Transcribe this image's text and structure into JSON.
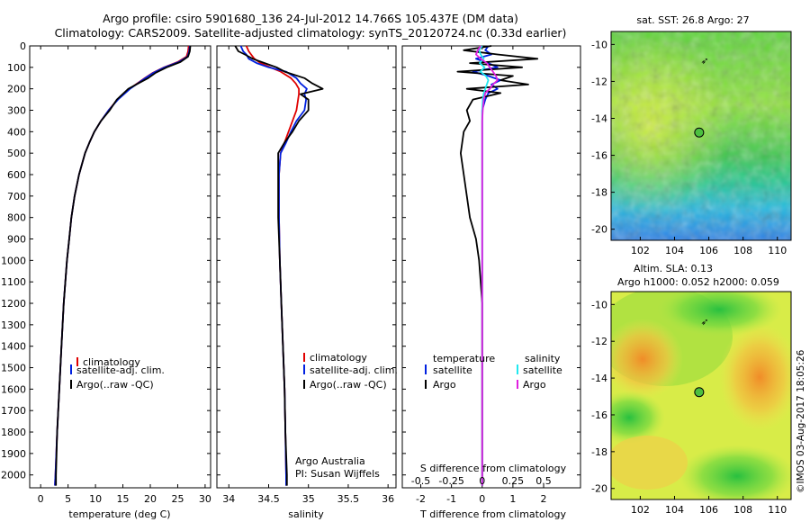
{
  "title_line1": "Argo profile: csiro 5901680_136 24-Jul-2012 14.766S 105.437E (DM data)",
  "title_line2": "Climatology: CARS2009. Satellite-adjusted climatology: synTS_20120724.nc (0.33d earlier)",
  "watermark": "©IMOS 03-Aug-2017 18:05:26",
  "colors": {
    "climatology": "#e00000",
    "satellite": "#0020e0",
    "argo": "#000000",
    "salinity_sat": "#20e8f0",
    "salinity_argo": "#e020e0"
  },
  "chart_data": [
    {
      "type": "line",
      "id": "temperature",
      "xlabel": "temperature (deg C)",
      "ylabel": "depth",
      "xlim": [
        -2,
        31
      ],
      "ylim": [
        2060,
        0
      ],
      "xticks": [
        0,
        5,
        10,
        15,
        20,
        25,
        30
      ],
      "yticks": [
        0,
        100,
        200,
        300,
        400,
        500,
        600,
        700,
        800,
        900,
        1000,
        1100,
        1200,
        1300,
        1400,
        1500,
        1600,
        1700,
        1800,
        1900,
        2000
      ],
      "legend": [
        "climatology",
        "satellite-adj. clim.",
        "Argo(..raw -QC)"
      ],
      "depth": [
        0,
        25,
        50,
        75,
        100,
        125,
        150,
        175,
        200,
        250,
        300,
        350,
        400,
        450,
        500,
        600,
        700,
        800,
        900,
        1000,
        1200,
        1400,
        1600,
        1800,
        2000,
        2050
      ],
      "series": [
        {
          "name": "climatology",
          "color_key": "climatology",
          "values": [
            27.0,
            26.9,
            26.6,
            25.0,
            22.5,
            20.5,
            19.0,
            17.6,
            16.2,
            14.0,
            12.4,
            11.0,
            9.8,
            8.9,
            8.1,
            7.0,
            6.2,
            5.6,
            5.2,
            4.8,
            4.2,
            3.8,
            3.4,
            3.0,
            2.7,
            2.6
          ]
        },
        {
          "name": "satellite-adj. clim.",
          "color_key": "satellite",
          "values": [
            27.2,
            27.1,
            26.8,
            25.2,
            22.6,
            20.6,
            19.1,
            17.7,
            16.3,
            14.1,
            12.4,
            11.0,
            9.8,
            8.9,
            8.1,
            7.0,
            6.2,
            5.6,
            5.2,
            4.8,
            4.2,
            3.8,
            3.4,
            3.0,
            2.7,
            2.6
          ]
        },
        {
          "name": "Argo(..raw -QC)",
          "color_key": "argo",
          "values": [
            27.3,
            27.2,
            26.9,
            25.5,
            23.0,
            21.0,
            19.6,
            17.8,
            16.0,
            13.9,
            12.6,
            11.0,
            9.8,
            8.9,
            8.1,
            7.0,
            6.2,
            5.6,
            5.2,
            4.8,
            4.2,
            3.8,
            3.4,
            3.0,
            2.8,
            2.8
          ]
        }
      ]
    },
    {
      "type": "line",
      "id": "salinity",
      "xlabel": "salinity",
      "ylabel": "depth",
      "xlim": [
        33.85,
        36.1
      ],
      "ylim": [
        2060,
        0
      ],
      "xticks": [
        34,
        34.5,
        35,
        35.5,
        36
      ],
      "legend": [
        "climatology",
        "satellite-adj. clim.",
        "Argo(..raw -QC)"
      ],
      "footer": [
        "Argo Australia",
        "PI: Susan Wijffels"
      ],
      "depth": [
        0,
        25,
        40,
        60,
        80,
        100,
        120,
        150,
        175,
        200,
        225,
        250,
        300,
        350,
        400,
        450,
        500,
        600,
        800,
        1000,
        1200,
        1400,
        1600,
        1800,
        2000,
        2050
      ],
      "series": [
        {
          "name": "climatology",
          "color_key": "climatology",
          "values": [
            34.22,
            34.25,
            34.28,
            34.32,
            34.4,
            34.52,
            34.65,
            34.78,
            34.84,
            34.88,
            34.88,
            34.87,
            34.85,
            34.8,
            34.75,
            34.7,
            34.65,
            34.63,
            34.63,
            34.64,
            34.66,
            34.68,
            34.7,
            34.71,
            34.72,
            34.72
          ]
        },
        {
          "name": "satellite-adj. clim.",
          "color_key": "satellite",
          "values": [
            34.15,
            34.18,
            34.22,
            34.25,
            34.35,
            34.5,
            34.72,
            34.85,
            34.9,
            34.98,
            34.95,
            34.97,
            34.95,
            34.85,
            34.78,
            34.72,
            34.65,
            34.63,
            34.63,
            34.64,
            34.66,
            34.68,
            34.7,
            34.71,
            34.72,
            34.72
          ]
        },
        {
          "name": "Argo(..raw -QC)",
          "color_key": "argo",
          "values": [
            34.08,
            34.12,
            34.2,
            34.3,
            34.45,
            34.6,
            34.7,
            34.95,
            35.05,
            35.18,
            34.9,
            35.0,
            35.0,
            34.88,
            34.8,
            34.7,
            34.62,
            34.62,
            34.62,
            34.64,
            34.66,
            34.68,
            34.7,
            34.71,
            34.73,
            34.73
          ]
        }
      ]
    },
    {
      "type": "line",
      "id": "difference",
      "xlabel": "T difference from climatology",
      "xlabel_top": "S difference from climatology",
      "ylabel": "depth",
      "xlim": [
        -2.6,
        3.2
      ],
      "ylim": [
        2060,
        0
      ],
      "xticks": [
        -2,
        -1,
        0,
        1,
        2
      ],
      "xticks_top": [
        -0.5,
        -0.25,
        0,
        0.25,
        0.5
      ],
      "legend_headers": [
        "temperature",
        "salinity"
      ],
      "legend": [
        "satellite",
        "Argo",
        "satellite",
        "Argo"
      ],
      "depth": [
        0,
        20,
        40,
        60,
        80,
        100,
        120,
        140,
        160,
        180,
        200,
        220,
        250,
        300,
        350,
        400,
        500,
        600,
        700,
        800,
        900,
        1000,
        1200,
        1500,
        1800,
        2000,
        2050
      ],
      "series": [
        {
          "name": "temperature satellite",
          "color_key": "satellite",
          "values": [
            0.2,
            0.1,
            0.3,
            -0.2,
            0.2,
            0.5,
            -0.3,
            0.2,
            0.6,
            0.3,
            0.5,
            0.2,
            0.1,
            0.0,
            0.0,
            0.0,
            0.0,
            0.0,
            0.0,
            0.0,
            0.0,
            0.0,
            0.0,
            0.0,
            0.0,
            0.0,
            0.0
          ]
        },
        {
          "name": "temperature Argo",
          "color_key": "argo",
          "values": [
            0.3,
            -0.6,
            0.5,
            1.8,
            -0.4,
            1.3,
            -0.8,
            1.0,
            0.6,
            1.5,
            -0.5,
            0.6,
            -0.3,
            -0.5,
            -0.4,
            -0.6,
            -0.7,
            -0.6,
            -0.5,
            -0.4,
            -0.2,
            -0.1,
            0.0,
            0.0,
            0.0,
            0.0,
            0.0
          ]
        },
        {
          "name": "salinity satellite",
          "color_key": "salinity_sat",
          "values": [
            0.0,
            -0.1,
            -0.05,
            0.05,
            -0.08,
            0.08,
            -0.06,
            0.12,
            0.2,
            0.15,
            0.1,
            0.05,
            0.02,
            0.0,
            0.0,
            0.0,
            0.0,
            0.0,
            0.0,
            0.0,
            0.0,
            0.0,
            0.0,
            0.0,
            0.0,
            0.0,
            0.0
          ]
        },
        {
          "name": "salinity Argo",
          "color_key": "salinity_argo",
          "values": [
            -0.05,
            -0.14,
            -0.2,
            -0.05,
            0.15,
            0.25,
            0.35,
            0.45,
            0.5,
            0.35,
            0.25,
            0.1,
            0.05,
            0.02,
            0.0,
            0.0,
            0.0,
            0.0,
            0.0,
            0.0,
            0.0,
            0.0,
            0.0,
            0.0,
            0.0,
            0.0,
            0.0
          ]
        }
      ]
    },
    {
      "type": "heatmap",
      "id": "sst_map",
      "title": "sat. SST: 26.8  Argo: 27",
      "xlim": [
        100.3,
        110.8
      ],
      "ylim": [
        -20.6,
        -9.3
      ],
      "xticks": [
        102,
        104,
        106,
        108,
        110
      ],
      "yticks": [
        -10,
        -12,
        -14,
        -16,
        -18,
        -20
      ],
      "profile_position": [
        105.437,
        -14.766
      ]
    },
    {
      "type": "heatmap",
      "id": "sla_map",
      "title_line1": "Altim. SLA: 0.13",
      "title_line2": "Argo h1000: 0.052  h2000: 0.059",
      "xlim": [
        100.3,
        110.8
      ],
      "ylim": [
        -20.6,
        -9.3
      ],
      "xticks": [
        102,
        104,
        106,
        108,
        110
      ],
      "yticks": [
        -10,
        -12,
        -14,
        -16,
        -18,
        -20
      ],
      "profile_position": [
        105.437,
        -14.766
      ]
    }
  ]
}
